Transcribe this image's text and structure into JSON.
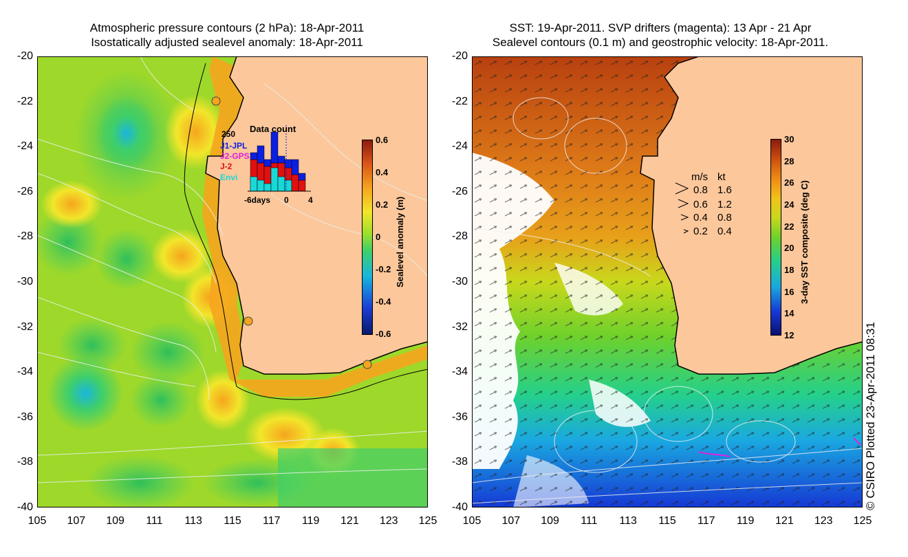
{
  "left_panel": {
    "title_line1": "Atmospheric pressure contours (2 hPa): 18-Apr-2011",
    "title_line2": "Isostatically adjusted sealevel anomaly: 18-Apr-2011",
    "colorbar_label": "Sealevel anomaly (m)",
    "colorbar_ticks": [
      "0.6",
      "0.4",
      "0.2",
      "0",
      "-0.2",
      "-0.4",
      "-0.6"
    ],
    "colorbar_colors": [
      "#08196b",
      "#1a3fd6",
      "#19b6dd",
      "#3fcf6a",
      "#9ee02a",
      "#f2e62a",
      "#f6a51e",
      "#d9541a",
      "#8a1a0d"
    ],
    "data_count": {
      "title": "Data count",
      "ytick": "250",
      "xticks": [
        "-6days",
        "0",
        "4"
      ],
      "legend": [
        {
          "name": "J1-JPL",
          "color": "#0b1fe0"
        },
        {
          "name": "J2-GPS",
          "color": "#e21ee0"
        },
        {
          "name": "J-2",
          "color": "#e01010"
        },
        {
          "name": "Envi",
          "color": "#19d8d8"
        }
      ]
    }
  },
  "right_panel": {
    "title_line1": "SST: 19-Apr-2011. SVP drifters (magenta): 13 Apr - 21 Apr",
    "title_line2": "Sealevel contours (0.1 m) and geostrophic velocity: 18-Apr-2011.",
    "colorbar_label": "3-day SST composite (deg C)",
    "colorbar_ticks": [
      "30",
      "28",
      "26",
      "24",
      "22",
      "20",
      "18",
      "16",
      "14",
      "12"
    ],
    "colorbar_colors": [
      "#0a1070",
      "#1638d4",
      "#1aa9e0",
      "#25d08a",
      "#6fd12b",
      "#c8d81c",
      "#f2c21a",
      "#ee8a16",
      "#cc4d10",
      "#8a1a0d"
    ],
    "velocity_legend": {
      "header_ms": "m/s",
      "header_kt": "kt",
      "rows": [
        {
          "ms": "0.8",
          "kt": "1.6"
        },
        {
          "ms": "0.6",
          "kt": "1.2"
        },
        {
          "ms": "0.4",
          "kt": "0.8"
        },
        {
          "ms": "0.2",
          "kt": "0.4"
        }
      ]
    }
  },
  "axes": {
    "lat_ticks": [
      "-20",
      "-22",
      "-24",
      "-26",
      "-28",
      "-30",
      "-32",
      "-34",
      "-36",
      "-38",
      "-40"
    ],
    "lon_ticks": [
      "105",
      "107",
      "109",
      "111",
      "113",
      "115",
      "117",
      "119",
      "121",
      "123",
      "125"
    ]
  },
  "colors": {
    "land": "#fcc79b",
    "ocean_left": "#9ed82a",
    "ocean_right_warm": "#dd7a18",
    "ocean_right_cool": "#2a66d6"
  },
  "credit": "© CSIRO Plotted 23-Apr-2011 08:31"
}
